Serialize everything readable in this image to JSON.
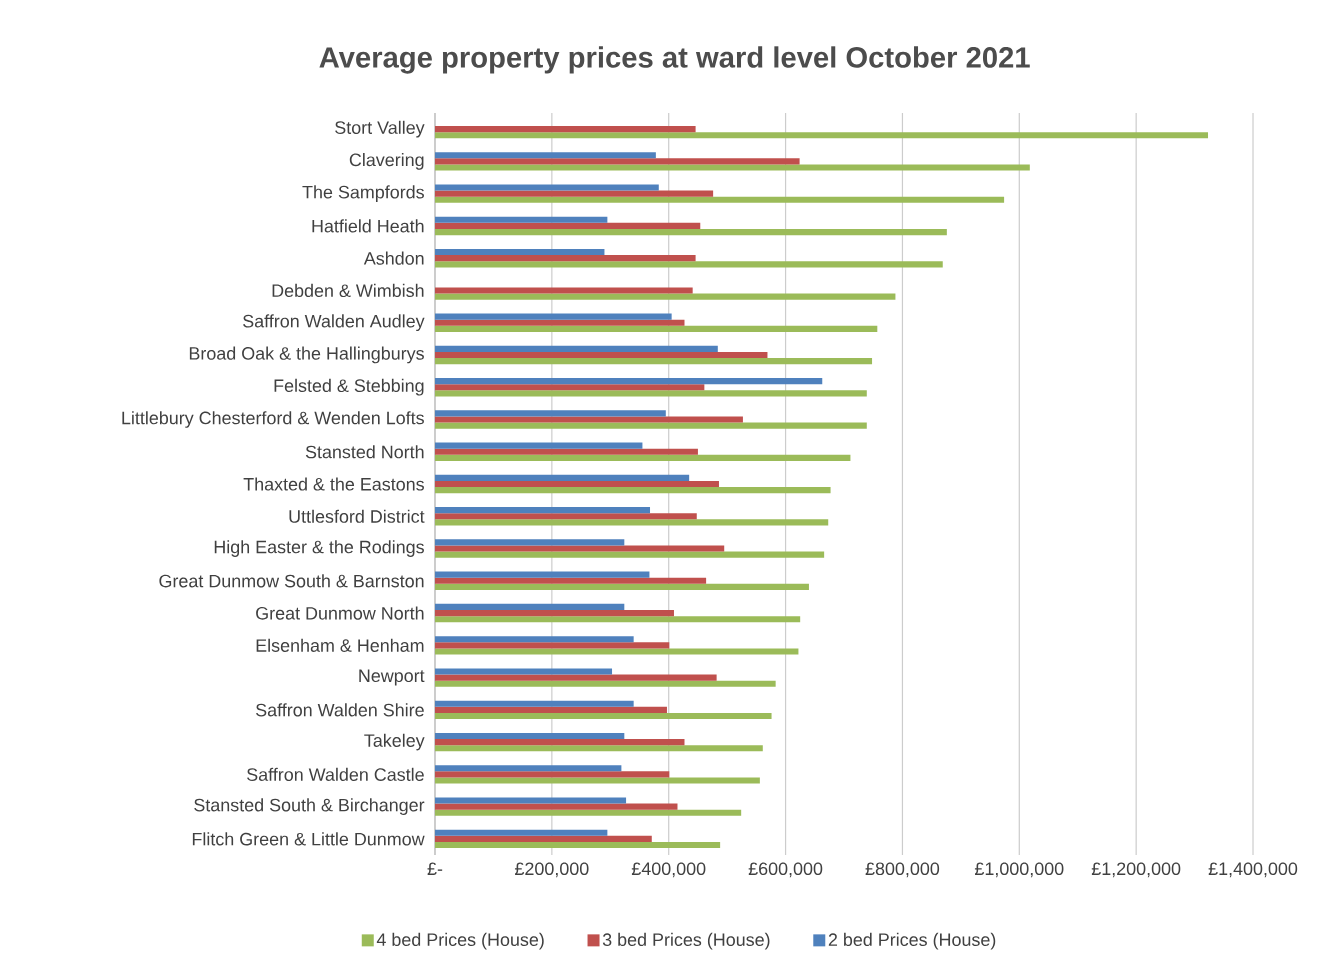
{
  "chart_data": {
    "type": "bar",
    "orientation": "horizontal",
    "title": "Average property prices at ward level October 2021",
    "categories": [
      "Stort Valley",
      "Clavering",
      "The Sampfords",
      "Hatfield Heath",
      "Ashdon",
      "Debden & Wimbish",
      "Saffron Walden Audley",
      "Broad Oak & the Hallingburys",
      "Felsted & Stebbing",
      "Littlebury Chesterford & Wenden Lofts",
      "Stansted North",
      "Thaxted & the Eastons",
      "Uttlesford District",
      "High Easter & the Rodings",
      "Great Dunmow South & Barnston",
      "Great Dunmow North",
      "Elsenham & Henham",
      "Newport",
      "Saffron Walden Shire",
      "Takeley",
      "Saffron Walden Castle",
      "Stansted South & Birchanger",
      "Flitch Green & Little Dunmow"
    ],
    "series": [
      {
        "name": "4 bed Prices (House)",
        "color": "#9bbb59",
        "values": [
          1323000,
          1018000,
          974000,
          876000,
          869000,
          788000,
          757000,
          748000,
          739000,
          739000,
          711000,
          677000,
          673000,
          666000,
          640000,
          625000,
          622000,
          583000,
          576000,
          561000,
          556000,
          524000,
          488000
        ]
      },
      {
        "name": "3 bed Prices (House)",
        "color": "#c0504d",
        "values": [
          446000,
          624000,
          476000,
          454000,
          446000,
          441000,
          427000,
          569000,
          461000,
          527000,
          450000,
          486000,
          448000,
          495000,
          464000,
          409000,
          401000,
          482000,
          397000,
          427000,
          401000,
          415000,
          371000
        ]
      },
      {
        "name": "2 bed Prices (House)",
        "color": "#4f81bd",
        "values": [
          null,
          378000,
          383000,
          295000,
          290000,
          null,
          405000,
          484000,
          663000,
          395000,
          355000,
          435000,
          368000,
          324000,
          367000,
          324000,
          340000,
          303000,
          340000,
          324000,
          319000,
          327000,
          295000
        ]
      }
    ],
    "xlim": [
      0,
      1400000
    ],
    "xticks": [
      {
        "value": 0,
        "label": "£-"
      },
      {
        "value": 200000,
        "label": "£200,000"
      },
      {
        "value": 400000,
        "label": "£400,000"
      },
      {
        "value": 600000,
        "label": "£600,000"
      },
      {
        "value": 800000,
        "label": "£800,000"
      },
      {
        "value": 1000000,
        "label": "£1,000,000"
      },
      {
        "value": 1200000,
        "label": "£1,200,000"
      },
      {
        "value": 1400000,
        "label": "£1,400,000"
      }
    ],
    "grid": "x",
    "legend": "bottom"
  }
}
